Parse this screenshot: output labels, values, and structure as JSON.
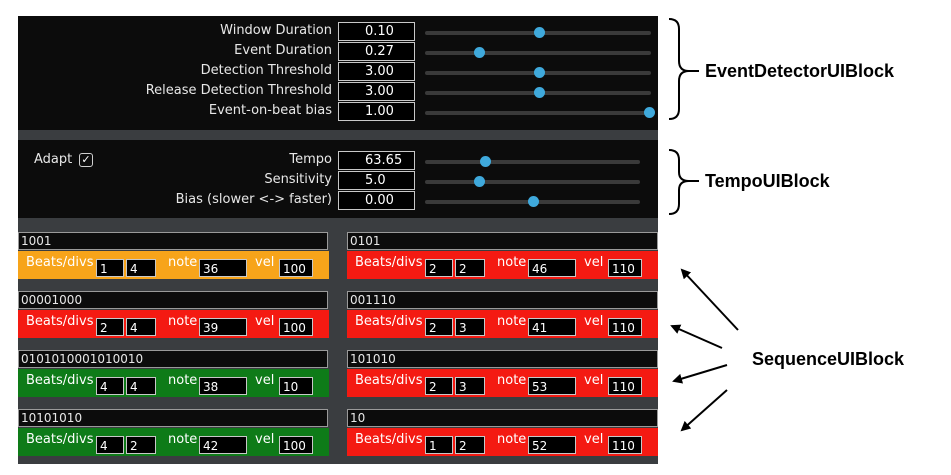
{
  "event_detector": {
    "rows": [
      {
        "label": "Window Duration",
        "value": "0.10",
        "slider": 0.51
      },
      {
        "label": "Event Duration",
        "value": "0.27",
        "slider": 0.24
      },
      {
        "label": "Detection Threshold",
        "value": "3.00",
        "slider": 0.51
      },
      {
        "label": "Release Detection Threshold",
        "value": "3.00",
        "slider": 0.51
      },
      {
        "label": "Event-on-beat bias",
        "value": "1.00",
        "slider": 1.0
      }
    ]
  },
  "tempo": {
    "adapt_label": "Adapt",
    "adapt_check": "✓",
    "rows": [
      {
        "label": "Tempo",
        "value": "63.65",
        "slider": 0.28
      },
      {
        "label": "Sensitivity",
        "value": "5.0",
        "slider": 0.25
      },
      {
        "label": "Bias (slower <-> faster)",
        "value": "0.00",
        "slider": 0.5
      }
    ]
  },
  "sequences": {
    "beats_label": "Beats/divs",
    "note_label": "note",
    "vel_label": "vel",
    "colors": {
      "orange": "#f7a41a",
      "red": "#f41a12",
      "green": "#0e7b18"
    },
    "items": [
      {
        "pattern": "1001",
        "beats": "1",
        "divs": "4",
        "note": "36",
        "vel": "100",
        "color": "#f7a41a"
      },
      {
        "pattern": "0101",
        "beats": "2",
        "divs": "2",
        "note": "46",
        "vel": "110",
        "color": "#f41a12"
      },
      {
        "pattern": "00001000",
        "beats": "2",
        "divs": "4",
        "note": "39",
        "vel": "100",
        "color": "#f41a12"
      },
      {
        "pattern": "001110",
        "beats": "2",
        "divs": "3",
        "note": "41",
        "vel": "110",
        "color": "#f41a12"
      },
      {
        "pattern": "0101010001010010",
        "beats": "4",
        "divs": "4",
        "note": "38",
        "vel": "10",
        "color": "#0e7b18"
      },
      {
        "pattern": "101010",
        "beats": "2",
        "divs": "3",
        "note": "53",
        "vel": "110",
        "color": "#f41a12"
      },
      {
        "pattern": "10101010",
        "beats": "4",
        "divs": "2",
        "note": "42",
        "vel": "100",
        "color": "#0e7b18"
      },
      {
        "pattern": "10",
        "beats": "1",
        "divs": "2",
        "note": "52",
        "vel": "110",
        "color": "#f41a12"
      }
    ]
  },
  "annotations": {
    "event_detector": "EventDetectorUIBlock",
    "tempo": "TempoUIBlock",
    "sequence": "SequenceUIBlock"
  }
}
